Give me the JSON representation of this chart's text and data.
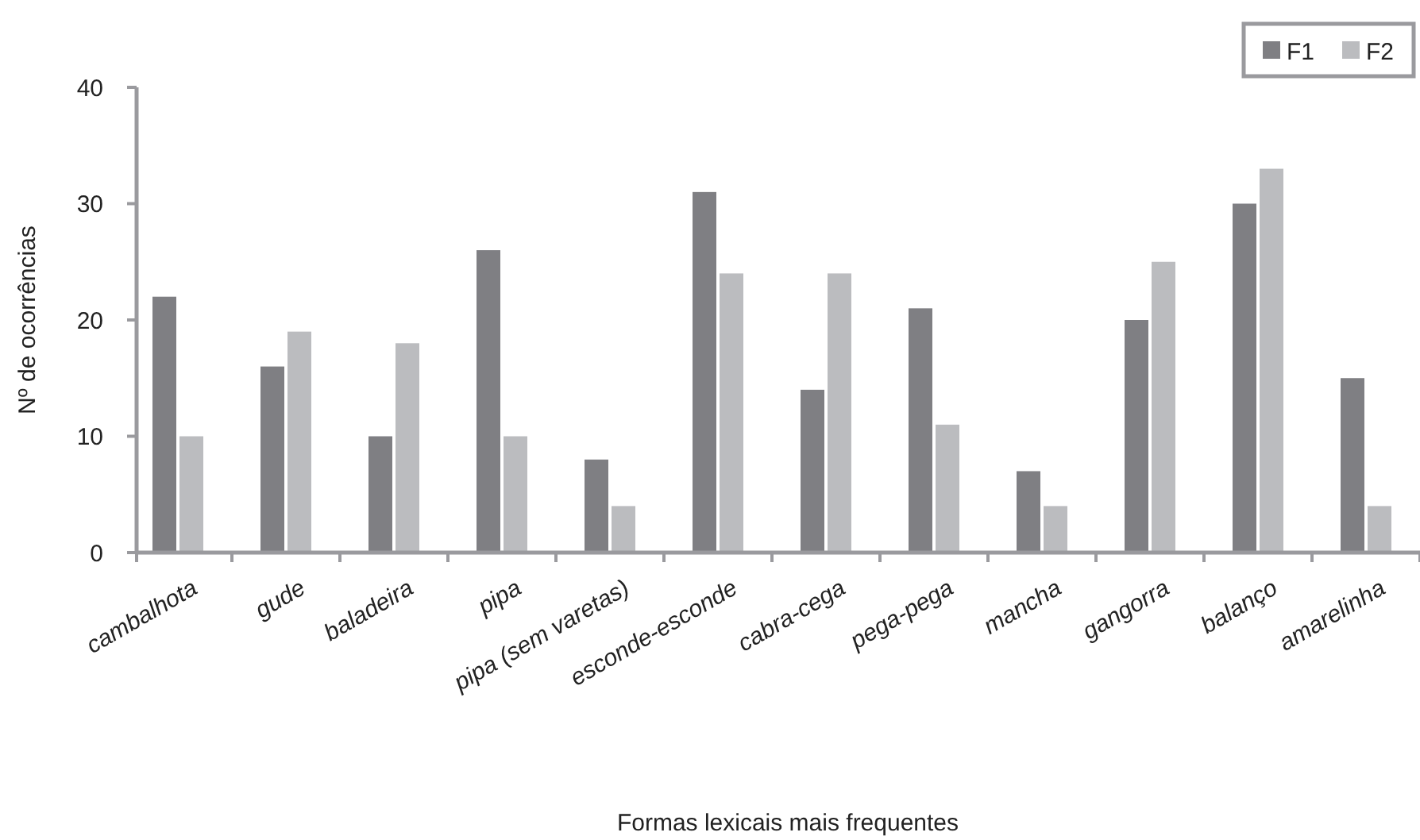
{
  "chart_data": {
    "type": "bar",
    "xlabel": "Formas lexicais mais frequentes",
    "ylabel": "Nº de ocorrências",
    "categories": [
      "cambalhota",
      "gude",
      "baladeira",
      "pipa",
      "pipa (sem varetas)",
      "esconde-esconde",
      "cabra-cega",
      "pega-pega",
      "mancha",
      "gangorra",
      "balanço",
      "amarelinha"
    ],
    "series": [
      {
        "name": "F1",
        "color": "#7f7f83",
        "values": [
          22,
          16,
          10,
          26,
          8,
          31,
          14,
          21,
          7,
          20,
          30,
          15
        ]
      },
      {
        "name": "F2",
        "color": "#bbbcbf",
        "values": [
          10,
          19,
          18,
          10,
          4,
          24,
          24,
          11,
          4,
          25,
          33,
          4
        ]
      }
    ],
    "ylim": [
      0,
      40
    ],
    "yticks": [
      0,
      10,
      20,
      30,
      40
    ],
    "grid": false,
    "legend": "top right"
  }
}
